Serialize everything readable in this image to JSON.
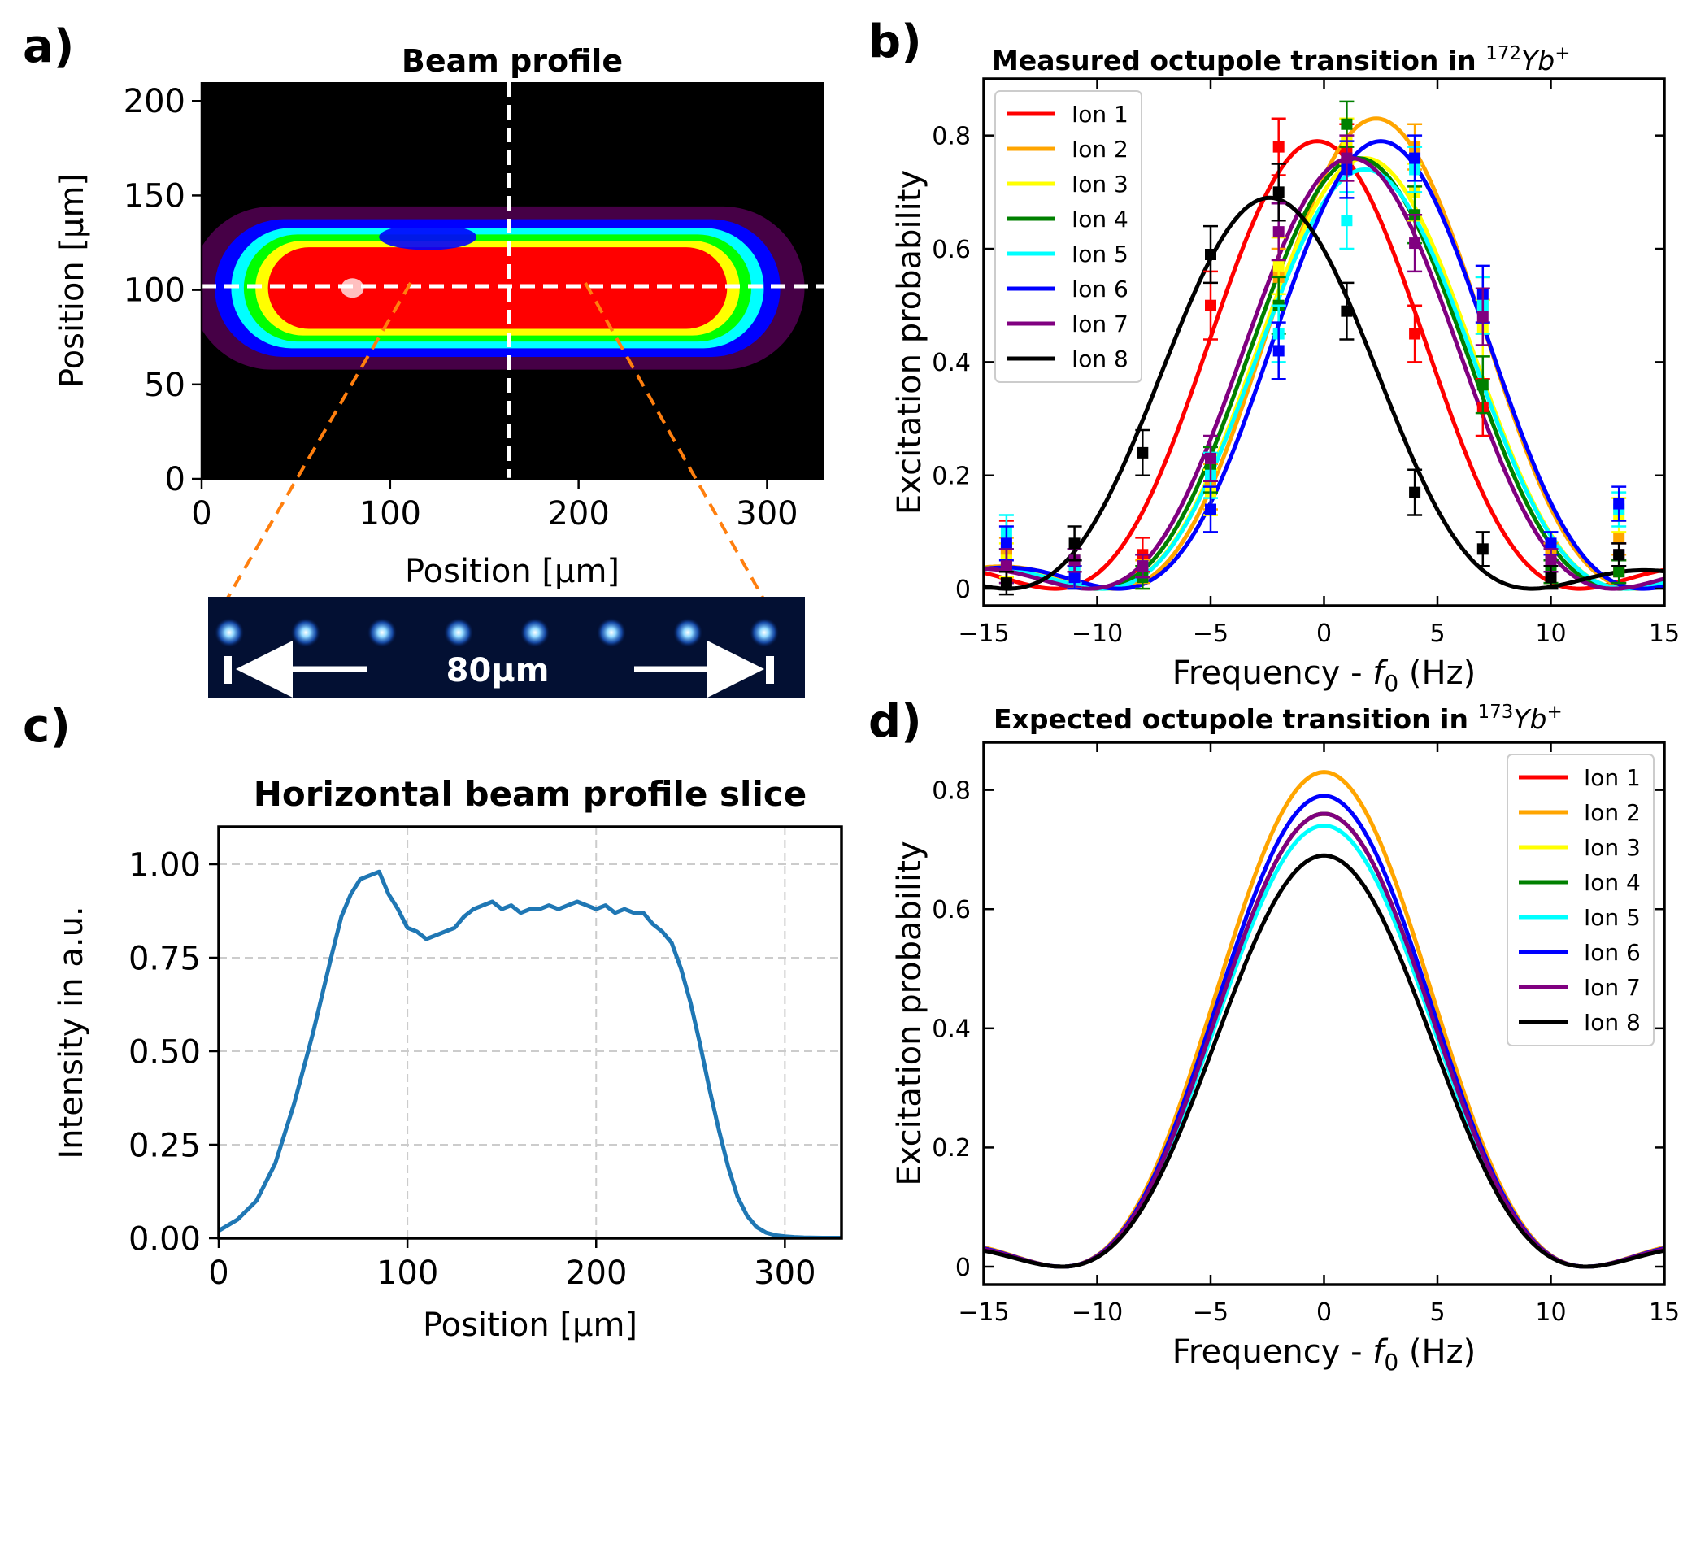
{
  "panels": {
    "a": {
      "letter": "a)",
      "title": "Beam profile",
      "xlabel": "Position [μm]",
      "ylabel": "Position [μm]",
      "xticks": [
        "0",
        "100",
        "200",
        "300"
      ],
      "yticks": [
        "0",
        "50",
        "100",
        "150",
        "200"
      ],
      "inset_label": "80μm"
    },
    "b": {
      "letter": "b)",
      "title": "Measured octupole transition in",
      "title_iso": "172",
      "title_ion": "Yb",
      "title_charge": "+"
    },
    "c": {
      "letter": "c)"
    },
    "d": {
      "letter": "d)",
      "title": "Expected octupole transition in",
      "title_iso": "173",
      "title_ion": "Yb",
      "title_charge": "+"
    }
  },
  "ion_colors": [
    "#ff0000",
    "#ffa500",
    "#ffff00",
    "#008000",
    "#00ffff",
    "#0000ff",
    "#800080",
    "#000000"
  ],
  "chart_data": [
    {
      "panel": "a",
      "type": "heatmap",
      "title": "Beam profile",
      "xlabel": "Position [μm]",
      "ylabel": "Position [μm]",
      "xlim": [
        0,
        330
      ],
      "ylim": [
        0,
        210
      ],
      "colormap": [
        "#000000",
        "#800080",
        "#0000ff",
        "#00ffff",
        "#00ff00",
        "#ffff00",
        "#ff0000",
        "#ffffff"
      ],
      "crosshair": {
        "x": 163,
        "y": 102
      },
      "beam": {
        "x_center": 157,
        "x_plateau_half_width": 105,
        "y_center": 101,
        "y_halfwidth": 27
      },
      "inset_ion_count": 8,
      "inset_label": "80μm"
    },
    {
      "panel": "b",
      "type": "line",
      "title": "Measured octupole transition in ¹⁷²Yb⁺",
      "xlabel": "Frequency - f0 (Hz)",
      "ylabel": "Excitation probability",
      "xlim": [
        -15,
        15
      ],
      "ylim": [
        -0.03,
        0.9
      ],
      "xticks": [
        -15,
        -10,
        -5,
        0,
        5,
        10,
        15
      ],
      "yticks": [
        0.0,
        0.2,
        0.4,
        0.6,
        0.8
      ],
      "legend": "top-left",
      "series": [
        {
          "name": "Ion 1",
          "center": -0.3,
          "peak": 0.79,
          "points_x": [
            -14,
            -11,
            -8,
            -5,
            -2,
            1,
            4,
            7,
            10,
            13
          ],
          "points_y": [
            0.07,
            0.03,
            0.06,
            0.5,
            0.78,
            0.77,
            0.45,
            0.32,
            0.03,
            0.03
          ],
          "err": [
            0.05,
            0.02,
            0.03,
            0.06,
            0.05,
            0.05,
            0.05,
            0.05,
            0.02,
            0.02
          ]
        },
        {
          "name": "Ion 2",
          "center": 2.3,
          "peak": 0.83,
          "points_x": [
            -14,
            -11,
            -8,
            -5,
            -2,
            1,
            4,
            7,
            10,
            13
          ],
          "points_y": [
            0.06,
            0.02,
            0.03,
            0.18,
            0.55,
            0.79,
            0.78,
            0.5,
            0.06,
            0.09
          ],
          "err": [
            0.03,
            0.02,
            0.02,
            0.04,
            0.05,
            0.04,
            0.04,
            0.05,
            0.02,
            0.03
          ]
        },
        {
          "name": "Ion 3",
          "center": 1.8,
          "peak": 0.76,
          "points_x": [
            -14,
            -11,
            -8,
            -5,
            -2,
            1,
            4,
            7,
            10,
            13
          ],
          "points_y": [
            0.05,
            0.02,
            0.02,
            0.17,
            0.57,
            0.79,
            0.7,
            0.46,
            0.05,
            0.13
          ],
          "err": [
            0.03,
            0.02,
            0.02,
            0.04,
            0.05,
            0.04,
            0.05,
            0.05,
            0.02,
            0.03
          ]
        },
        {
          "name": "Ion 4",
          "center": 1.5,
          "peak": 0.76,
          "points_x": [
            -14,
            -11,
            -8,
            -5,
            -2,
            1,
            4,
            7,
            10,
            13
          ],
          "points_y": [
            0.04,
            0.05,
            0.02,
            0.21,
            0.5,
            0.82,
            0.66,
            0.36,
            0.03,
            0.03
          ],
          "err": [
            0.03,
            0.02,
            0.02,
            0.04,
            0.05,
            0.04,
            0.05,
            0.05,
            0.02,
            0.02
          ]
        },
        {
          "name": "Ion 5",
          "center": 1.8,
          "peak": 0.74,
          "points_x": [
            -14,
            -11,
            -8,
            -5,
            -2,
            1,
            4,
            7,
            10,
            13
          ],
          "points_y": [
            0.1,
            0.03,
            0.04,
            0.2,
            0.45,
            0.65,
            0.74,
            0.5,
            0.05,
            0.14
          ],
          "err": [
            0.03,
            0.02,
            0.02,
            0.04,
            0.05,
            0.05,
            0.04,
            0.05,
            0.02,
            0.03
          ]
        },
        {
          "name": "Ion 6",
          "center": 2.5,
          "peak": 0.79,
          "points_x": [
            -14,
            -11,
            -8,
            -5,
            -2,
            1,
            4,
            7,
            10,
            13
          ],
          "points_y": [
            0.08,
            0.02,
            0.04,
            0.14,
            0.42,
            0.74,
            0.76,
            0.52,
            0.08,
            0.15
          ],
          "err": [
            0.03,
            0.02,
            0.02,
            0.04,
            0.05,
            0.05,
            0.04,
            0.05,
            0.02,
            0.03
          ]
        },
        {
          "name": "Ion 7",
          "center": 1.2,
          "peak": 0.76,
          "points_x": [
            -14,
            -11,
            -8,
            -5,
            -2,
            1,
            4,
            7,
            10,
            13
          ],
          "points_y": [
            0.04,
            0.05,
            0.04,
            0.23,
            0.63,
            0.76,
            0.61,
            0.48,
            0.05,
            0.06
          ],
          "err": [
            0.03,
            0.02,
            0.02,
            0.04,
            0.05,
            0.04,
            0.05,
            0.05,
            0.02,
            0.02
          ]
        },
        {
          "name": "Ion 8",
          "center": -2.4,
          "peak": 0.69,
          "points_x": [
            -14,
            -11,
            -8,
            -5,
            -2,
            1,
            4,
            7,
            10,
            13
          ],
          "points_y": [
            0.01,
            0.08,
            0.24,
            0.59,
            0.7,
            0.49,
            0.17,
            0.07,
            0.02,
            0.06
          ],
          "err": [
            0.02,
            0.03,
            0.04,
            0.05,
            0.05,
            0.05,
            0.04,
            0.03,
            0.02,
            0.02
          ]
        }
      ]
    },
    {
      "panel": "c",
      "type": "line",
      "title": "Horizontal beam profile slice",
      "xlabel": "Position [μm]",
      "ylabel": "Intensity in a.u.",
      "xlim": [
        0,
        330
      ],
      "ylim": [
        0,
        1.1
      ],
      "xticks": [
        0,
        100,
        200,
        300
      ],
      "yticks": [
        "0.00",
        "0.25",
        "0.50",
        "0.75",
        "1.00"
      ],
      "grid": true,
      "x": [
        0,
        10,
        20,
        30,
        40,
        50,
        60,
        65,
        70,
        75,
        80,
        85,
        90,
        95,
        100,
        105,
        110,
        115,
        120,
        125,
        130,
        135,
        140,
        145,
        150,
        155,
        160,
        165,
        170,
        175,
        180,
        185,
        190,
        195,
        200,
        205,
        210,
        215,
        220,
        225,
        230,
        235,
        240,
        245,
        250,
        255,
        260,
        265,
        270,
        275,
        280,
        285,
        290,
        295,
        300,
        305,
        310,
        320,
        330
      ],
      "y": [
        0.02,
        0.05,
        0.1,
        0.2,
        0.36,
        0.55,
        0.76,
        0.86,
        0.92,
        0.96,
        0.97,
        0.98,
        0.92,
        0.88,
        0.83,
        0.82,
        0.8,
        0.81,
        0.82,
        0.83,
        0.86,
        0.88,
        0.89,
        0.9,
        0.88,
        0.89,
        0.87,
        0.88,
        0.88,
        0.89,
        0.88,
        0.89,
        0.9,
        0.89,
        0.88,
        0.89,
        0.87,
        0.88,
        0.87,
        0.87,
        0.84,
        0.82,
        0.79,
        0.72,
        0.63,
        0.52,
        0.4,
        0.29,
        0.19,
        0.11,
        0.06,
        0.03,
        0.015,
        0.008,
        0.005,
        0.003,
        0.002,
        0.001,
        0.001
      ]
    },
    {
      "panel": "d",
      "type": "line",
      "title": "Expected octupole transition in ¹⁷³Yb⁺",
      "xlabel": "Frequency - f0 (Hz)",
      "ylabel": "Excitation probability",
      "xlim": [
        -15,
        15
      ],
      "ylim": [
        -0.03,
        0.88
      ],
      "xticks": [
        -15,
        -10,
        -5,
        0,
        5,
        10,
        15
      ],
      "yticks": [
        0.0,
        0.2,
        0.4,
        0.6,
        0.8
      ],
      "legend": "top-right",
      "series": [
        {
          "name": "Ion 1",
          "center": 0,
          "peak": 0.76
        },
        {
          "name": "Ion 2",
          "center": 0,
          "peak": 0.83
        },
        {
          "name": "Ion 3",
          "center": 0,
          "peak": 0.76
        },
        {
          "name": "Ion 4",
          "center": 0,
          "peak": 0.76
        },
        {
          "name": "Ion 5",
          "center": 0,
          "peak": 0.74
        },
        {
          "name": "Ion 6",
          "center": 0,
          "peak": 0.79
        },
        {
          "name": "Ion 7",
          "center": 0,
          "peak": 0.76
        },
        {
          "name": "Ion 8",
          "center": 0,
          "peak": 0.69
        }
      ]
    }
  ]
}
